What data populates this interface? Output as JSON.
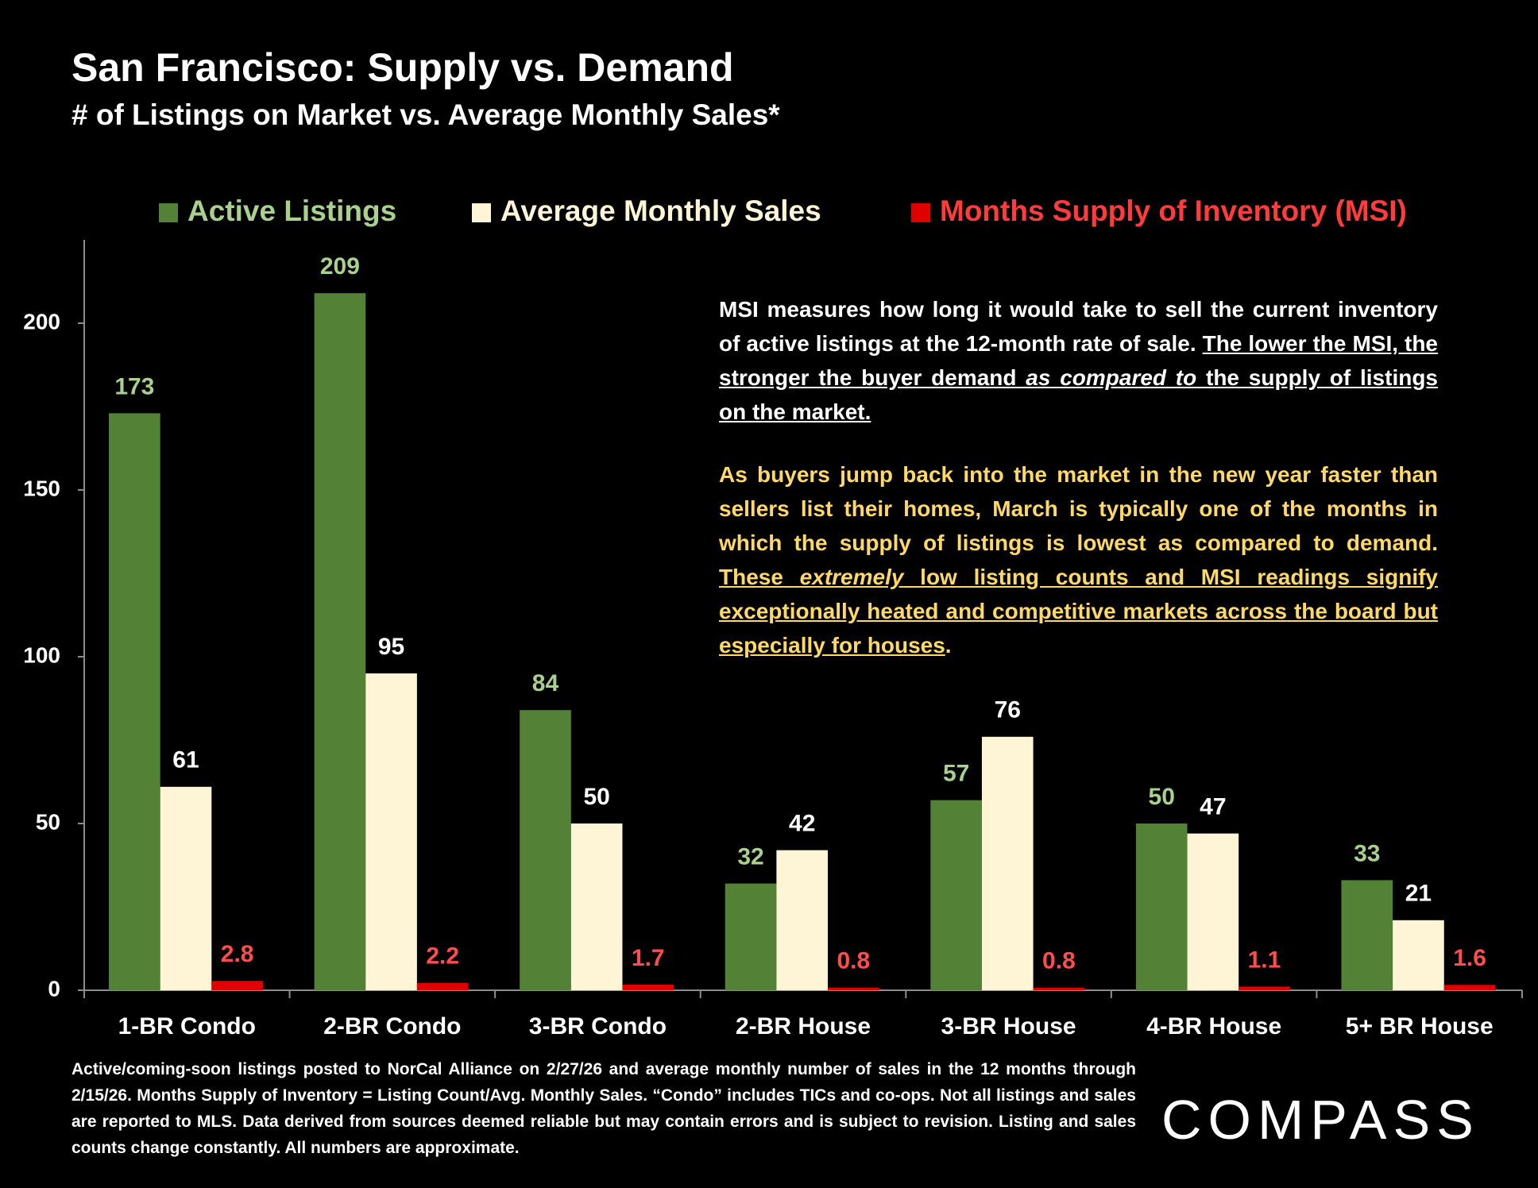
{
  "chart_data": {
    "type": "bar",
    "title": "San Francisco: Supply vs. Demand",
    "subtitle": "# of Listings on Market vs. Average Monthly Sales*",
    "categories": [
      "1-BR Condo",
      "2-BR Condo",
      "3-BR Condo",
      "2-BR House",
      "3-BR House",
      "4-BR House",
      "5+ BR House"
    ],
    "series": [
      {
        "name": "Active Listings",
        "color": "#538135",
        "label_color": "#a9d18e",
        "values": [
          173,
          209,
          84,
          32,
          57,
          50,
          33
        ]
      },
      {
        "name": "Average Monthly Sales",
        "color": "#fdf5d6",
        "label_color": "#ffffff",
        "values": [
          61,
          95,
          50,
          42,
          76,
          47,
          21
        ]
      },
      {
        "name": "Months Supply of Inventory (MSI)",
        "color": "#e00000",
        "label_color": "#ff4d4d",
        "values": [
          2.8,
          2.2,
          1.7,
          0.8,
          0.8,
          1.1,
          1.6
        ]
      }
    ],
    "ylim": [
      0,
      225
    ],
    "yticks": [
      0,
      50,
      100,
      150,
      200
    ],
    "grid": false,
    "legend": "top",
    "annotations": [
      [
        "MSI measures how long it would take to sell the current inventory of active listings at the 12-month rate of sale. ",
        "The lower the MSI, the stronger the buyer demand ",
        "as compared to",
        " the supply of listings on the market."
      ],
      [
        "As buyers jump back into the market in the new year faster than sellers list their homes, March is typically one of the months in which the supply of listings is lowest as compared to demand. ",
        "These ",
        "extremely",
        " low listing counts and MSI readings signify exceptionally heated and competitive markets across the board but especially for houses",
        "."
      ]
    ]
  },
  "footer": {
    "footnote": "Active/coming-soon listings posted to NorCal Alliance on 2/27/26 and average monthly number of sales in the 12 months through 2/15/26. Months Supply of Inventory = Listing Count/Avg. Monthly Sales. “Condo” includes TICs and co-ops. Not all listings and sales are reported to MLS. Data derived from sources deemed reliable but may contain errors and is subject to revision. Listing and sales counts change constantly. All numbers are approximate.",
    "logo": "COMPASS"
  }
}
